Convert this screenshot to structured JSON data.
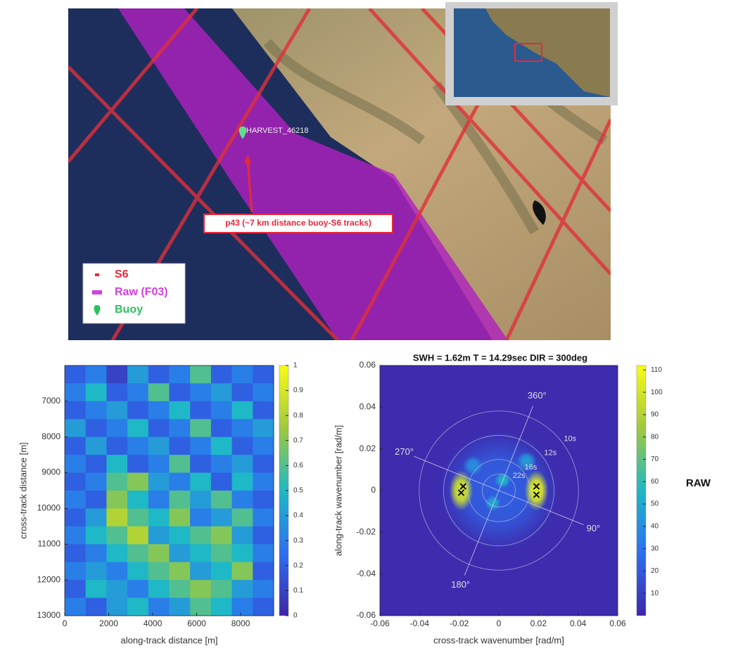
{
  "map": {
    "buoy_label": "HARVEST_46218",
    "annotation": "p43 (~7 km distance buoy-S6 tracks)",
    "legend": [
      {
        "label": "S6",
        "color": "#e8283c"
      },
      {
        "label": "Raw (F03)",
        "color": "#d040e0"
      },
      {
        "label": "Buoy",
        "color": "#2ec060"
      }
    ]
  },
  "chart_data": [
    {
      "type": "heatmap",
      "xlabel": "along-track distance [m]",
      "ylabel": "cross-track distance [m]",
      "xlim": [
        0,
        9500
      ],
      "xticks": [
        0,
        2000,
        4000,
        6000,
        8000
      ],
      "ylim": [
        13000,
        6000
      ],
      "yticks": [
        7000,
        8000,
        9000,
        10000,
        11000,
        12000,
        13000
      ],
      "clim": [
        0,
        1
      ],
      "cticks": [
        0,
        0.1,
        0.2,
        0.3,
        0.4,
        0.5,
        0.6,
        0.7,
        0.8,
        0.9,
        1
      ],
      "z": [
        [
          0.2,
          0.3,
          0.1,
          0.4,
          0.2,
          0.3,
          0.6,
          0.2,
          0.3,
          0.2
        ],
        [
          0.3,
          0.5,
          0.2,
          0.3,
          0.6,
          0.2,
          0.3,
          0.4,
          0.2,
          0.3
        ],
        [
          0.2,
          0.3,
          0.4,
          0.2,
          0.3,
          0.5,
          0.2,
          0.3,
          0.5,
          0.2
        ],
        [
          0.4,
          0.2,
          0.3,
          0.5,
          0.2,
          0.3,
          0.6,
          0.2,
          0.3,
          0.4
        ],
        [
          0.2,
          0.4,
          0.2,
          0.3,
          0.4,
          0.2,
          0.3,
          0.5,
          0.2,
          0.3
        ],
        [
          0.3,
          0.2,
          0.5,
          0.2,
          0.3,
          0.6,
          0.2,
          0.3,
          0.4,
          0.2
        ],
        [
          0.2,
          0.3,
          0.6,
          0.7,
          0.4,
          0.3,
          0.5,
          0.2,
          0.5,
          0.3
        ],
        [
          0.3,
          0.2,
          0.7,
          0.5,
          0.3,
          0.6,
          0.4,
          0.6,
          0.3,
          0.2
        ],
        [
          0.2,
          0.4,
          0.8,
          0.6,
          0.5,
          0.7,
          0.3,
          0.4,
          0.6,
          0.3
        ],
        [
          0.3,
          0.5,
          0.6,
          0.8,
          0.4,
          0.5,
          0.6,
          0.7,
          0.4,
          0.2
        ],
        [
          0.2,
          0.3,
          0.5,
          0.6,
          0.7,
          0.4,
          0.5,
          0.6,
          0.5,
          0.3
        ],
        [
          0.3,
          0.4,
          0.3,
          0.5,
          0.6,
          0.7,
          0.4,
          0.5,
          0.7,
          0.2
        ],
        [
          0.2,
          0.5,
          0.4,
          0.3,
          0.5,
          0.6,
          0.7,
          0.6,
          0.4,
          0.3
        ],
        [
          0.3,
          0.2,
          0.4,
          0.5,
          0.3,
          0.4,
          0.6,
          0.5,
          0.3,
          0.2
        ]
      ]
    },
    {
      "type": "spectrum",
      "title": "SWH = 1.62m T = 14.29sec DIR = 300deg",
      "xlabel": "cross-track wavenumber [rad/m]",
      "ylabel": "along-track wavenumber [rad/m]",
      "side_label": "RAW",
      "xlim": [
        -0.06,
        0.06
      ],
      "xticks": [
        -0.06,
        -0.04,
        -0.02,
        0,
        0.02,
        0.04,
        0.06
      ],
      "ylim": [
        -0.06,
        0.06
      ],
      "yticks": [
        -0.06,
        -0.04,
        -0.02,
        0,
        0.02,
        0.04,
        0.06
      ],
      "clim": [
        0,
        112
      ],
      "cticks": [
        10,
        20,
        30,
        40,
        50,
        60,
        70,
        80,
        90,
        100,
        110
      ],
      "peaks": {
        "x": [
          0,
          -0.019,
          0.019,
          0.002,
          -0.003,
          0.014,
          -0.013
        ],
        "y": [
          0,
          0,
          0,
          0.005,
          -0.006,
          0.014,
          0.012
        ],
        "values": [
          22,
          100,
          105,
          55,
          50,
          45,
          40
        ],
        "widths": [
          0.03,
          0.006,
          0.006,
          0.004,
          0.004,
          0.005,
          0.005
        ]
      },
      "markers": {
        "x": [
          -0.019,
          -0.018,
          0.019,
          0.019
        ],
        "y": [
          -0.001,
          0.002,
          0.002,
          -0.002
        ]
      },
      "rings": [
        {
          "label": "10s",
          "radius": 0.0402
        },
        {
          "label": "12s",
          "radius": 0.0279
        },
        {
          "label": "16s",
          "radius": 0.0157
        },
        {
          "label": "22s",
          "radius": 0.0083
        }
      ],
      "directions": [
        "360°",
        "90°",
        "180°",
        "270°"
      ]
    }
  ]
}
